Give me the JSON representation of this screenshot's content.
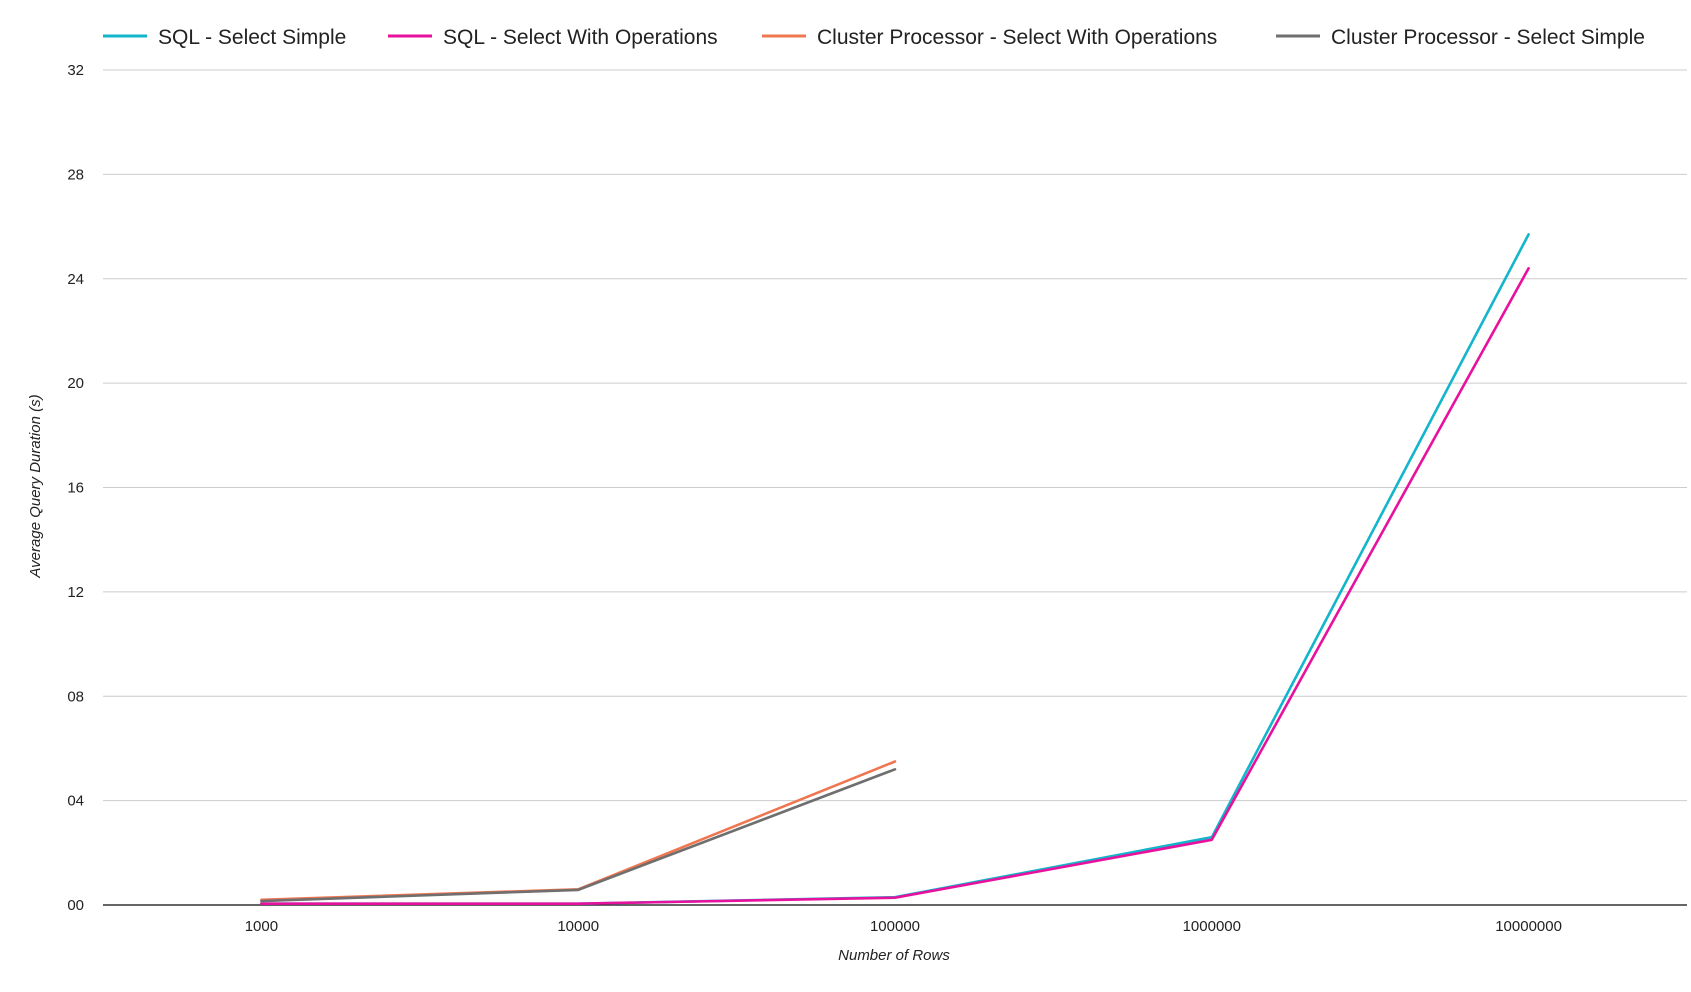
{
  "chart_data": {
    "type": "line",
    "title": "",
    "xlabel": "Number of Rows",
    "ylabel": "Average Query Duration (s)",
    "categories": [
      "1000",
      "10000",
      "100000",
      "1000000",
      "10000000"
    ],
    "yticks": [
      "00",
      "04",
      "08",
      "12",
      "16",
      "20",
      "24",
      "28",
      "32"
    ],
    "ytick_values": [
      0,
      4,
      8,
      12,
      16,
      20,
      24,
      28,
      32
    ],
    "ylim": [
      0,
      32
    ],
    "grid": true,
    "legend_position": "top",
    "series": [
      {
        "name": "SQL - Select Simple",
        "color": "#12b5cb",
        "values": [
          0.05,
          0.05,
          0.3,
          2.6,
          25.7
        ]
      },
      {
        "name": "SQL - Select With Operations",
        "color": "#e8119e",
        "values": [
          0.05,
          0.05,
          0.28,
          2.5,
          24.4
        ]
      },
      {
        "name": "Cluster Processor - Select With Operations",
        "color": "#f07650",
        "values": [
          0.2,
          0.6,
          5.5,
          null,
          null
        ]
      },
      {
        "name": "Cluster Processor - Select Simple",
        "color": "#6f6f6f",
        "values": [
          0.15,
          0.58,
          5.2,
          null,
          null
        ]
      }
    ]
  }
}
